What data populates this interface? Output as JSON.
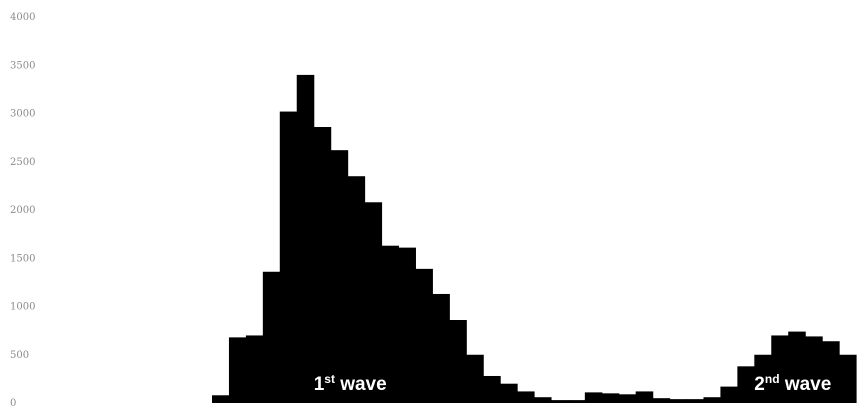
{
  "chart_data": {
    "type": "bar",
    "title": "",
    "xlabel": "",
    "ylabel": "",
    "ylim": [
      0,
      4000
    ],
    "yticks": [
      0,
      500,
      1000,
      1500,
      2000,
      2500,
      3000,
      3500,
      4000
    ],
    "ytick_labels": [
      "0",
      "500",
      "1000",
      "1500",
      "2000",
      "2500",
      "3000",
      "3500",
      "4000"
    ],
    "grid": false,
    "legend": "none",
    "bar_color": "#000000",
    "values": [
      80,
      680,
      700,
      1360,
      3020,
      3400,
      2860,
      2620,
      2350,
      2080,
      1630,
      1610,
      1390,
      1130,
      860,
      500,
      280,
      200,
      120,
      60,
      30,
      30,
      110,
      100,
      90,
      120,
      50,
      40,
      40,
      60,
      170,
      380,
      500,
      700,
      740,
      690,
      640,
      500
    ],
    "annotations": [
      {
        "main": "1",
        "sup": "st",
        "rest": " wave",
        "at_bar": 6
      },
      {
        "main": "2",
        "sup": "nd",
        "rest": " wave",
        "at_bar": 32
      }
    ]
  }
}
